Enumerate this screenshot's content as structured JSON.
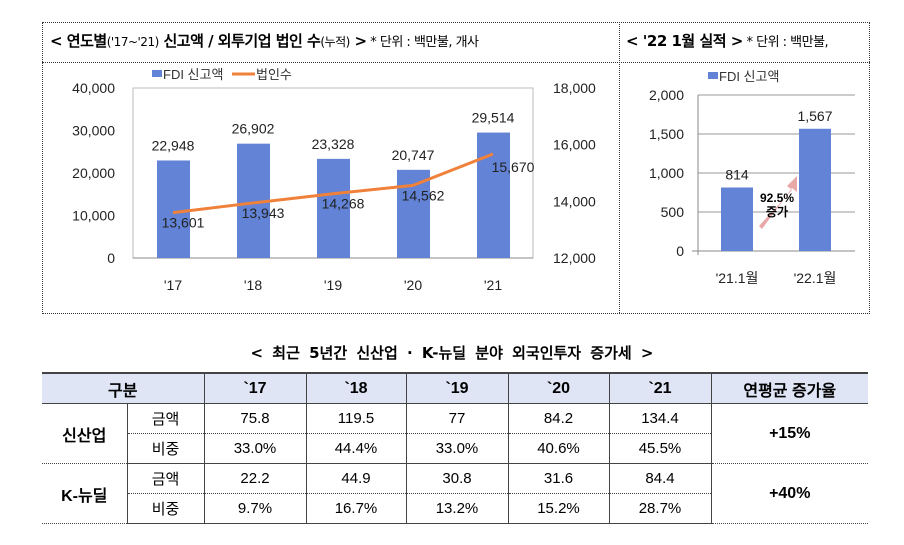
{
  "left_panel": {
    "title_main": "< 연도별",
    "title_range": "('17~'21)",
    "title_rest": " 신고액 / 외투기업 법인 수",
    "title_sub": "(누적)",
    "title_close": " >",
    "unit": " * 단위 : 백만불, 개사"
  },
  "right_panel": {
    "title": "< '22 1월 실적 >",
    "unit": " * 단위 : 백만불,"
  },
  "chart_data": [
    {
      "type": "bar+line",
      "categories": [
        "'17",
        "'18",
        "'19",
        "'20",
        "'21"
      ],
      "series": [
        {
          "name": "FDI 신고액",
          "type": "bar",
          "axis": "left",
          "values": [
            22948,
            26902,
            23328,
            20747,
            29514
          ],
          "labels": [
            "22,948",
            "26,902",
            "23,328",
            "20,747",
            "29,514"
          ],
          "color": "#6283d6"
        },
        {
          "name": "법인수",
          "type": "line",
          "axis": "right",
          "values": [
            13601,
            13943,
            14268,
            14562,
            15670
          ],
          "labels": [
            "13,601",
            "13,943",
            "14,268",
            "14,562",
            "15,670"
          ],
          "color": "#f0813a"
        }
      ],
      "y_left": {
        "range": [
          0,
          40000
        ],
        "ticks": [
          "0",
          "10,000",
          "20,000",
          "30,000",
          "40,000"
        ]
      },
      "y_right": {
        "range": [
          12000,
          18000
        ],
        "ticks": [
          "12,000",
          "14,000",
          "16,000",
          "18,000"
        ]
      },
      "legend": "top-left",
      "grid": false
    },
    {
      "type": "bar",
      "categories": [
        "'21.1월",
        "'22.1월"
      ],
      "series": [
        {
          "name": "FDI 신고액",
          "values": [
            814,
            1567
          ],
          "labels": [
            "814",
            "1,567"
          ],
          "color": "#6283d6"
        }
      ],
      "y": {
        "range": [
          0,
          2000
        ],
        "ticks": [
          "0",
          "500",
          "1,000",
          "1,500",
          "2,000"
        ]
      },
      "annotation": [
        "92.5%",
        "증가"
      ],
      "arrow_color": "#e9a8a8",
      "legend": "top",
      "grid": true
    }
  ],
  "table": {
    "title": "< 최근 5년간 신산업 · K-뉴딜 분야 외국인투자 증가세 >",
    "headers": [
      "구분",
      "`17",
      "`18",
      "`19",
      "`20",
      "`21",
      "연평균 증가율"
    ],
    "groups": [
      {
        "name": "신산업",
        "rows": [
          {
            "label": "금액",
            "values": [
              "75.8",
              "119.5",
              "77",
              "84.2",
              "134.4"
            ]
          },
          {
            "label": "비중",
            "values": [
              "33.0%",
              "44.4%",
              "33.0%",
              "40.6%",
              "45.5%"
            ]
          }
        ],
        "rate": "+15%"
      },
      {
        "name": "K-뉴딜",
        "rows": [
          {
            "label": "금액",
            "values": [
              "22.2",
              "44.9",
              "30.8",
              "31.6",
              "84.4"
            ]
          },
          {
            "label": "비중",
            "values": [
              "9.7%",
              "16.7%",
              "13.2%",
              "15.2%",
              "28.7%"
            ]
          }
        ],
        "rate": "+40%"
      }
    ]
  }
}
